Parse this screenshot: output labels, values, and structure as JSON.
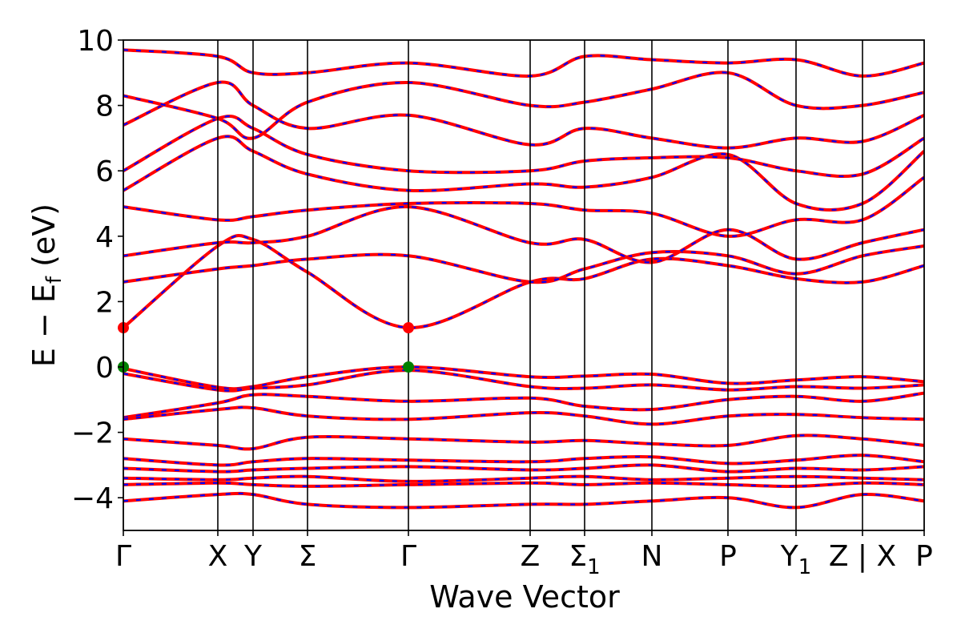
{
  "chart_data": {
    "type": "line",
    "title": "",
    "xlabel": "Wave Vector",
    "ylabel": "E − E_f (eV)",
    "ylabel_parts": {
      "main": "E − E",
      "sub": "f",
      "unit": " (eV)"
    },
    "ylim": [
      -5,
      10
    ],
    "yticks": [
      -4,
      -2,
      0,
      2,
      4,
      6,
      8,
      10
    ],
    "ytick_labels": [
      "−4",
      "−2",
      "0",
      "2",
      "4",
      "6",
      "8",
      "10"
    ],
    "xlim": [
      0,
      10
    ],
    "high_symmetry_points": [
      {
        "label": "Γ",
        "sub": "",
        "x": 0.0
      },
      {
        "label": "X",
        "sub": "",
        "x": 1.18
      },
      {
        "label": "Y",
        "sub": "",
        "x": 1.62
      },
      {
        "label": "Σ",
        "sub": "",
        "x": 2.3
      },
      {
        "label": "Γ",
        "sub": "",
        "x": 3.56
      },
      {
        "label": "Z",
        "sub": "",
        "x": 5.08
      },
      {
        "label": "Σ",
        "sub": "1",
        "x": 5.76
      },
      {
        "label": "N",
        "sub": "",
        "x": 6.6
      },
      {
        "label": "P",
        "sub": "",
        "x": 7.55
      },
      {
        "label": "Y",
        "sub": "1",
        "x": 8.4
      },
      {
        "label": "Z | X",
        "sub": "",
        "x": 9.23
      },
      {
        "label": "P",
        "sub": "",
        "x": 10.0
      }
    ],
    "series": [
      {
        "color": "#ff0000",
        "style": "solid",
        "x": [
          0,
          1.18,
          1.62,
          2.3,
          3.56,
          5.08,
          5.76,
          6.6,
          7.55,
          8.4,
          9.23,
          10.0
        ],
        "y": [
          -0.05,
          -0.62,
          -0.6,
          -0.3,
          0.0,
          -0.3,
          -0.28,
          -0.22,
          -0.5,
          -0.4,
          -0.3,
          -0.45
        ]
      },
      {
        "color": "#ff0000",
        "style": "solid",
        "x": [
          0,
          1.18,
          1.62,
          2.3,
          3.56,
          5.08,
          5.76,
          6.6,
          7.55,
          8.4,
          9.23,
          10.0
        ],
        "y": [
          -0.2,
          -0.7,
          -0.65,
          -0.55,
          -0.1,
          -0.6,
          -0.65,
          -0.55,
          -0.7,
          -0.6,
          -0.65,
          -0.55
        ]
      },
      {
        "color": "#ff0000",
        "style": "solid",
        "x": [
          0,
          1.18,
          1.62,
          2.3,
          3.56,
          5.08,
          5.76,
          6.6,
          7.55,
          8.4,
          9.23,
          10.0
        ],
        "y": [
          -1.55,
          -1.1,
          -0.85,
          -0.9,
          -1.05,
          -0.95,
          -1.2,
          -1.3,
          -1.0,
          -0.9,
          -1.05,
          -0.8
        ]
      },
      {
        "color": "#ff0000",
        "style": "solid",
        "x": [
          0,
          1.18,
          1.62,
          2.3,
          3.56,
          5.08,
          5.76,
          6.6,
          7.55,
          8.4,
          9.23,
          10.0
        ],
        "y": [
          -1.6,
          -1.3,
          -1.25,
          -1.5,
          -1.6,
          -1.4,
          -1.5,
          -1.75,
          -1.5,
          -1.45,
          -1.55,
          -1.6
        ]
      },
      {
        "color": "#ff0000",
        "style": "solid",
        "x": [
          0,
          1.18,
          1.62,
          2.3,
          3.56,
          5.08,
          5.76,
          6.6,
          7.55,
          8.4,
          9.23,
          10.0
        ],
        "y": [
          -2.2,
          -2.4,
          -2.5,
          -2.15,
          -2.2,
          -2.3,
          -2.25,
          -2.35,
          -2.4,
          -2.1,
          -2.2,
          -2.4
        ]
      },
      {
        "color": "#ff0000",
        "style": "solid",
        "x": [
          0,
          1.18,
          1.62,
          2.3,
          3.56,
          5.08,
          5.76,
          6.6,
          7.55,
          8.4,
          9.23,
          10.0
        ],
        "y": [
          -2.8,
          -3.0,
          -2.9,
          -2.8,
          -2.85,
          -2.9,
          -2.8,
          -2.75,
          -2.95,
          -2.85,
          -2.7,
          -2.9
        ]
      },
      {
        "color": "#ff0000",
        "style": "solid",
        "x": [
          0,
          1.18,
          1.62,
          2.3,
          3.56,
          5.08,
          5.76,
          6.6,
          7.55,
          8.4,
          9.23,
          10.0
        ],
        "y": [
          -3.1,
          -3.2,
          -3.15,
          -3.1,
          -3.05,
          -3.15,
          -3.1,
          -3.0,
          -3.2,
          -3.1,
          -3.15,
          -3.05
        ]
      },
      {
        "color": "#ff0000",
        "style": "solid",
        "x": [
          0,
          1.18,
          1.62,
          2.3,
          3.56,
          5.08,
          5.76,
          6.6,
          7.55,
          8.4,
          9.23,
          10.0
        ],
        "y": [
          -3.4,
          -3.45,
          -3.4,
          -3.35,
          -3.5,
          -3.4,
          -3.35,
          -3.45,
          -3.4,
          -3.35,
          -3.4,
          -3.45
        ]
      },
      {
        "color": "#ff0000",
        "style": "solid",
        "x": [
          0,
          1.18,
          1.62,
          2.3,
          3.56,
          5.08,
          5.76,
          6.6,
          7.55,
          8.4,
          9.23,
          10.0
        ],
        "y": [
          -3.6,
          -3.55,
          -3.6,
          -3.65,
          -3.6,
          -3.55,
          -3.6,
          -3.55,
          -3.6,
          -3.65,
          -3.55,
          -3.6
        ]
      },
      {
        "color": "#ff0000",
        "style": "solid",
        "x": [
          0,
          1.18,
          1.62,
          2.3,
          3.56,
          5.08,
          5.76,
          6.6,
          7.55,
          8.4,
          9.23,
          10.0
        ],
        "y": [
          -4.1,
          -3.9,
          -3.9,
          -4.2,
          -4.3,
          -4.2,
          -4.2,
          -4.1,
          -4.0,
          -4.3,
          -3.9,
          -4.1
        ]
      },
      {
        "color": "#ff0000",
        "style": "solid",
        "x": [
          0,
          1.18,
          1.62,
          2.3,
          3.56,
          5.08,
          5.76,
          6.6,
          7.55,
          8.4,
          9.23,
          10.0
        ],
        "y": [
          1.2,
          3.7,
          3.9,
          2.9,
          1.2,
          2.6,
          2.7,
          3.3,
          3.1,
          2.7,
          2.6,
          3.1
        ]
      },
      {
        "color": "#ff0000",
        "style": "solid",
        "x": [
          0,
          1.18,
          1.62,
          2.3,
          3.56,
          5.08,
          5.76,
          6.6,
          7.55,
          8.4,
          9.23,
          10.0
        ],
        "y": [
          2.6,
          3.0,
          3.1,
          3.3,
          3.4,
          2.6,
          3.0,
          3.5,
          3.4,
          2.85,
          3.4,
          3.7
        ]
      },
      {
        "color": "#ff0000",
        "style": "solid",
        "x": [
          0,
          1.18,
          1.62,
          2.3,
          3.56,
          5.08,
          5.76,
          6.6,
          7.55,
          8.4,
          9.23,
          10.0
        ],
        "y": [
          3.4,
          3.8,
          3.8,
          4.0,
          4.9,
          3.8,
          3.9,
          3.2,
          4.2,
          3.3,
          3.8,
          4.2
        ]
      },
      {
        "color": "#ff0000",
        "style": "solid",
        "x": [
          0,
          1.18,
          1.62,
          2.3,
          3.56,
          5.08,
          5.76,
          6.6,
          7.55,
          8.4,
          9.23,
          10.0
        ],
        "y": [
          4.9,
          4.5,
          4.6,
          4.8,
          5.0,
          5.0,
          4.8,
          4.7,
          4.0,
          4.5,
          4.5,
          5.8
        ]
      },
      {
        "color": "#ff0000",
        "style": "solid",
        "x": [
          0,
          1.18,
          1.62,
          2.3,
          3.56,
          5.08,
          5.76,
          6.6,
          7.55,
          8.4,
          9.23,
          10.0
        ],
        "y": [
          5.4,
          7.0,
          6.6,
          5.9,
          5.4,
          5.6,
          5.5,
          5.8,
          6.5,
          5.0,
          5.0,
          6.6
        ]
      },
      {
        "color": "#ff0000",
        "style": "solid",
        "x": [
          0,
          1.18,
          1.62,
          2.3,
          3.56,
          5.08,
          5.76,
          6.6,
          7.55,
          8.4,
          9.23,
          10.0
        ],
        "y": [
          6.0,
          7.6,
          7.3,
          6.5,
          6.0,
          6.0,
          6.3,
          6.4,
          6.4,
          6.0,
          5.9,
          7.0
        ]
      },
      {
        "color": "#ff0000",
        "style": "solid",
        "x": [
          0,
          1.18,
          1.62,
          2.3,
          3.56,
          5.08,
          5.76,
          6.6,
          7.55,
          8.4,
          9.23,
          10.0
        ],
        "y": [
          7.4,
          8.7,
          8.0,
          7.3,
          7.7,
          6.8,
          7.3,
          7.0,
          6.7,
          7.0,
          6.9,
          7.7
        ]
      },
      {
        "color": "#ff0000",
        "style": "solid",
        "x": [
          0,
          1.18,
          1.62,
          2.3,
          3.56,
          5.08,
          5.76,
          6.6,
          7.55,
          8.4,
          9.23,
          10.0
        ],
        "y": [
          8.3,
          7.6,
          7.0,
          8.1,
          8.7,
          8.0,
          8.1,
          8.5,
          9.0,
          8.0,
          8.0,
          8.4
        ]
      },
      {
        "color": "#ff0000",
        "style": "solid",
        "x": [
          0,
          1.18,
          1.62,
          2.3,
          3.56,
          5.08,
          5.76,
          6.6,
          7.55,
          8.4,
          9.23,
          10.0
        ],
        "y": [
          9.7,
          9.5,
          9.0,
          9.0,
          9.3,
          8.9,
          9.5,
          9.4,
          9.3,
          9.4,
          8.9,
          9.3
        ]
      }
    ],
    "markers": [
      {
        "x": 0.0,
        "y": 1.2,
        "color": "#ff0000"
      },
      {
        "x": 3.56,
        "y": 1.2,
        "color": "#ff0000"
      },
      {
        "x": 0.0,
        "y": 0.0,
        "color": "#008000"
      },
      {
        "x": 3.56,
        "y": 0.0,
        "color": "#008000"
      }
    ],
    "overlay_color": "#0000ff",
    "grid": false,
    "legend": "none"
  }
}
